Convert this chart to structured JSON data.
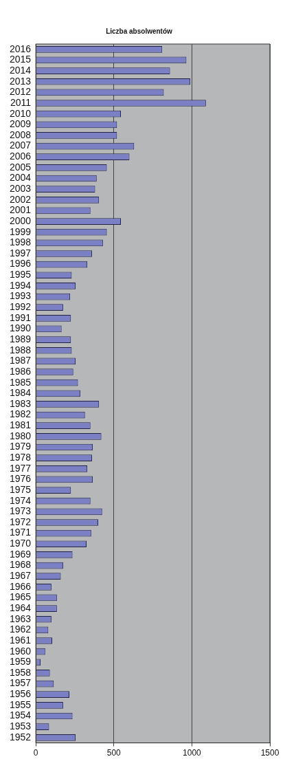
{
  "chart_data": {
    "type": "bar",
    "orientation": "horizontal",
    "title": "Liczba absolwentów",
    "categories": [
      "2016",
      "2015",
      "2014",
      "2013",
      "2012",
      "2011",
      "2010",
      "2009",
      "2008",
      "2007",
      "2006",
      "2005",
      "2004",
      "2003",
      "2002",
      "2001",
      "2000",
      "1999",
      "1998",
      "1997",
      "1996",
      "1995",
      "1994",
      "1993",
      "1992",
      "1991",
      "1990",
      "1989",
      "1988",
      "1987",
      "1986",
      "1985",
      "1984",
      "1983",
      "1982",
      "1981",
      "1980",
      "1979",
      "1978",
      "1977",
      "1976",
      "1975",
      "1974",
      "1973",
      "1972",
      "1971",
      "1970",
      "1969",
      "1968",
      "1967",
      "1966",
      "1965",
      "1964",
      "1963",
      "1962",
      "1961",
      "1960",
      "1959",
      "1958",
      "1957",
      "1956",
      "1955",
      "1954",
      "1953",
      "1952"
    ],
    "values": [
      810,
      965,
      860,
      990,
      820,
      1090,
      545,
      520,
      520,
      630,
      600,
      455,
      390,
      380,
      405,
      350,
      545,
      455,
      430,
      360,
      330,
      230,
      255,
      220,
      175,
      225,
      165,
      225,
      230,
      255,
      240,
      270,
      285,
      405,
      315,
      350,
      420,
      365,
      360,
      330,
      365,
      225,
      350,
      425,
      400,
      355,
      325,
      235,
      175,
      160,
      100,
      135,
      135,
      100,
      80,
      105,
      60,
      30,
      90,
      115,
      215,
      175,
      235,
      85,
      255
    ],
    "color": "#7b7fc4",
    "xlim": [
      0,
      1500
    ],
    "xticks": [
      0,
      500,
      1000,
      1500
    ],
    "grid": "x",
    "legend": false
  }
}
